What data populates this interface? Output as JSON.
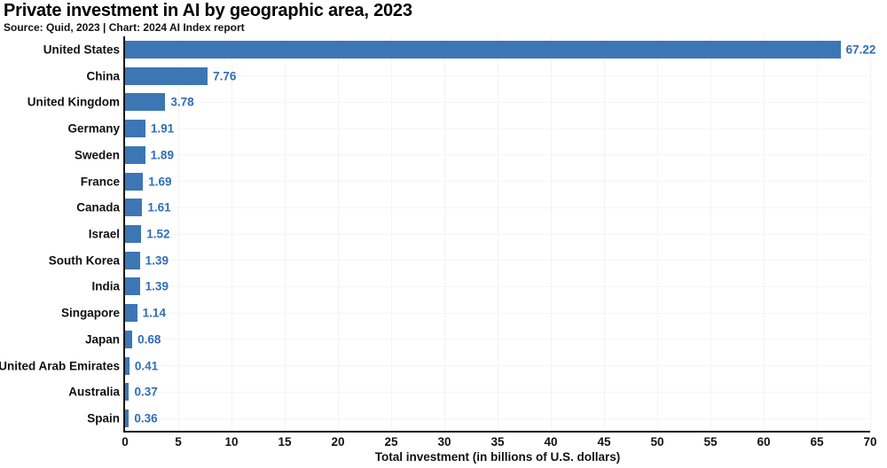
{
  "header": {
    "title": "Private investment in AI by geographic area, 2023",
    "subtitle": "Source: Quid, 2023 | Chart: 2024 AI Index report"
  },
  "chart_data": {
    "type": "bar",
    "orientation": "horizontal",
    "title": "Private investment in AI by geographic area, 2023",
    "subtitle": "Source: Quid, 2023 | Chart: 2024 AI Index report",
    "categories": [
      "United States",
      "China",
      "United Kingdom",
      "Germany",
      "Sweden",
      "France",
      "Canada",
      "Israel",
      "South Korea",
      "India",
      "Singapore",
      "Japan",
      "United Arab Emirates",
      "Australia",
      "Spain"
    ],
    "values": [
      67.22,
      7.76,
      3.78,
      1.91,
      1.89,
      1.69,
      1.61,
      1.52,
      1.39,
      1.39,
      1.14,
      0.68,
      0.41,
      0.37,
      0.36
    ],
    "value_labels": [
      "67.22",
      "7.76",
      "3.78",
      "1.91",
      "1.89",
      "1.69",
      "1.61",
      "1.52",
      "1.39",
      "1.39",
      "1.14",
      "0.68",
      "0.41",
      "0.37",
      "0.36"
    ],
    "xlabel": "Total investment (in billions of U.S. dollars)",
    "x_ticks": [
      "0",
      "5",
      "10",
      "15",
      "20",
      "25",
      "30",
      "35",
      "40",
      "45",
      "50",
      "55",
      "60",
      "65",
      "70"
    ],
    "xlim": [
      0,
      70
    ],
    "grid": true,
    "legend": "none",
    "colors": {
      "bar": "#3d76b5",
      "value_label": "#2f6eb8",
      "axis": "#161616",
      "gridline": "#f3f3f5",
      "text": "#111111"
    }
  }
}
